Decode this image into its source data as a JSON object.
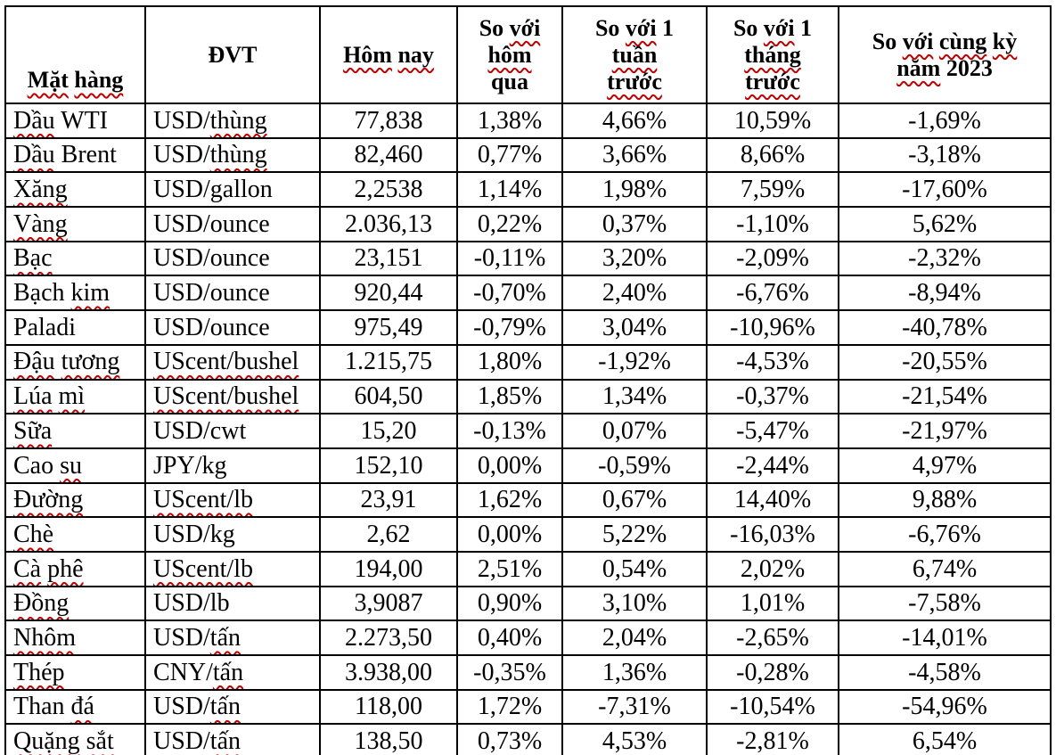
{
  "encoding_note": "Words wrapped in ~tildes~ are rendered with a red wavy spell-check underline, exactly as shown in the source pixels.",
  "colors": {
    "squiggle": "#c00000",
    "border": "#000000",
    "text": "#000000",
    "background": "#ffffff"
  },
  "table": {
    "columns": [
      {
        "key": "name",
        "label": "~Mặt~ ~hàng~",
        "align": "left"
      },
      {
        "key": "unit",
        "label": "ĐVT",
        "align": "left"
      },
      {
        "key": "today",
        "label": "~Hôm~ ~nay~",
        "align": "center"
      },
      {
        "key": "vs_yesterday",
        "label": "So ~với~\n~hôm~\nqua",
        "align": "center"
      },
      {
        "key": "vs_last_week",
        "label": "So ~với~ 1\n~tuần~\n~trước~",
        "align": "center"
      },
      {
        "key": "vs_last_month",
        "label": "So ~với~ 1\n~tháng~\n~trước~",
        "align": "center"
      },
      {
        "key": "vs_same_period_2023",
        "label": "So ~với~ ~cùng~ ~kỳ~\n~năm~ 2023",
        "align": "center"
      }
    ],
    "rows": [
      {
        "name": "~Dầu~ WTI",
        "unit": "USD/~thùng~",
        "today": "77,838",
        "vs_yesterday": "1,38%",
        "vs_last_week": "4,66%",
        "vs_last_month": "10,59%",
        "vs_same_period_2023": "-1,69%"
      },
      {
        "name": "~Dầu~ Brent",
        "unit": "USD/~thùng~",
        "today": "82,460",
        "vs_yesterday": "0,77%",
        "vs_last_week": "3,66%",
        "vs_last_month": "8,66%",
        "vs_same_period_2023": "-3,18%"
      },
      {
        "name": "~Xăng~",
        "unit": "USD/gallon",
        "today": "2,2538",
        "vs_yesterday": "1,14%",
        "vs_last_week": "1,98%",
        "vs_last_month": "7,59%",
        "vs_same_period_2023": "-17,60%"
      },
      {
        "name": "~Vàng~",
        "unit": "USD/ounce",
        "today": "2.036,13",
        "vs_yesterday": "0,22%",
        "vs_last_week": "0,37%",
        "vs_last_month": "-1,10%",
        "vs_same_period_2023": "5,62%"
      },
      {
        "name": "~Bạc~",
        "unit": "USD/ounce",
        "today": "23,151",
        "vs_yesterday": "-0,11%",
        "vs_last_week": "3,20%",
        "vs_last_month": "-2,09%",
        "vs_same_period_2023": "-2,32%"
      },
      {
        "name": "Bạch ~kim~",
        "unit": "USD/ounce",
        "today": "920,44",
        "vs_yesterday": "-0,70%",
        "vs_last_week": "2,40%",
        "vs_last_month": "-6,76%",
        "vs_same_period_2023": "-8,94%"
      },
      {
        "name": "Paladi",
        "unit": "USD/ounce",
        "today": "975,49",
        "vs_yesterday": "-0,79%",
        "vs_last_week": "3,04%",
        "vs_last_month": "-10,96%",
        "vs_same_period_2023": "-40,78%"
      },
      {
        "name": "~Đậu~ ~tương~",
        "unit": "~UScent/bushel~",
        "today": "1.215,75",
        "vs_yesterday": "1,80%",
        "vs_last_week": "-1,92%",
        "vs_last_month": "-4,53%",
        "vs_same_period_2023": "-20,55%"
      },
      {
        "name": "~Lúa~ ~mì~",
        "unit": "~UScent/bushel~",
        "today": "604,50",
        "vs_yesterday": "1,85%",
        "vs_last_week": "1,34%",
        "vs_last_month": "-0,37%",
        "vs_same_period_2023": "-21,54%"
      },
      {
        "name": "~Sữa~",
        "unit": "USD/cwt",
        "today": "15,20",
        "vs_yesterday": "-0,13%",
        "vs_last_week": "0,07%",
        "vs_last_month": "-5,47%",
        "vs_same_period_2023": "-21,97%"
      },
      {
        "name": "Cao ~su~",
        "unit": "JPY/kg",
        "today": "152,10",
        "vs_yesterday": "0,00%",
        "vs_last_week": "-0,59%",
        "vs_last_month": "-2,44%",
        "vs_same_period_2023": "4,97%"
      },
      {
        "name": "~Đường~",
        "unit": "~UScent/lb~",
        "today": "23,91",
        "vs_yesterday": "1,62%",
        "vs_last_week": "0,67%",
        "vs_last_month": "14,40%",
        "vs_same_period_2023": "9,88%"
      },
      {
        "name": "~Chè~",
        "unit": "USD/kg",
        "today": "2,62",
        "vs_yesterday": "0,00%",
        "vs_last_week": "5,22%",
        "vs_last_month": "-16,03%",
        "vs_same_period_2023": "-6,76%"
      },
      {
        "name": "~Cà~ ~phê~",
        "unit": "~UScent/lb~",
        "today": "194,00",
        "vs_yesterday": "2,51%",
        "vs_last_week": "0,54%",
        "vs_last_month": "2,02%",
        "vs_same_period_2023": "6,74%"
      },
      {
        "name": "~Đồng~",
        "unit": "USD/lb",
        "today": "3,9087",
        "vs_yesterday": "0,90%",
        "vs_last_week": "3,10%",
        "vs_last_month": "1,01%",
        "vs_same_period_2023": "-7,58%"
      },
      {
        "name": "~Nhôm~",
        "unit": "USD/~tấn~",
        "today": "2.273,50",
        "vs_yesterday": "0,40%",
        "vs_last_week": "2,04%",
        "vs_last_month": "-2,65%",
        "vs_same_period_2023": "-14,01%"
      },
      {
        "name": "~Thép~",
        "unit": "CNY/~tấn~",
        "today": "3.938,00",
        "vs_yesterday": "-0,35%",
        "vs_last_week": "1,36%",
        "vs_last_month": "-0,28%",
        "vs_same_period_2023": "-4,58%"
      },
      {
        "name": "Than ~đá~",
        "unit": "USD/~tấn~",
        "today": "118,00",
        "vs_yesterday": "1,72%",
        "vs_last_week": "-7,31%",
        "vs_last_month": "-10,54%",
        "vs_same_period_2023": "-54,96%"
      },
      {
        "name": "~Quặng~ ~sắt~",
        "unit": "USD/~tấn~",
        "today": "138,50",
        "vs_yesterday": "0,73%",
        "vs_last_week": "4,53%",
        "vs_last_month": "-2,81%",
        "vs_same_period_2023": "6,54%"
      }
    ]
  }
}
